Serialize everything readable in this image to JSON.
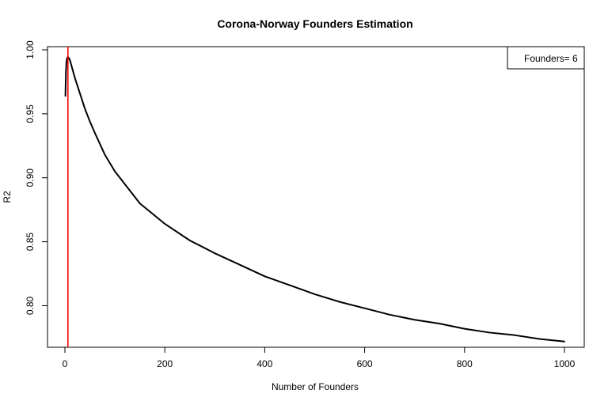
{
  "chart_data": {
    "type": "line",
    "title": "Corona-Norway  Founders Estimation",
    "xlabel": "Number of Founders",
    "ylabel": "R2",
    "xlim": [
      0,
      1000
    ],
    "ylim": [
      0.77,
      1.0
    ],
    "x_ticks": [
      0,
      200,
      400,
      600,
      800,
      1000
    ],
    "y_ticks": [
      0.8,
      0.85,
      0.9,
      0.95,
      1.0
    ],
    "x_tick_labels": [
      "0",
      "200",
      "400",
      "600",
      "800",
      "1000"
    ],
    "y_tick_labels": [
      "0.80",
      "0.85",
      "0.90",
      "0.95",
      "1.00"
    ],
    "grid": false,
    "legend": {
      "position": "top-right",
      "text": "Founders= 6"
    },
    "vline": {
      "x": 6,
      "color": "#ff0000"
    },
    "series": [
      {
        "color": "#000000",
        "x": [
          1,
          2,
          3,
          4,
          5,
          6,
          8,
          10,
          15,
          20,
          30,
          40,
          50,
          60,
          80,
          100,
          150,
          200,
          250,
          300,
          350,
          400,
          450,
          500,
          550,
          600,
          650,
          700,
          750,
          800,
          850,
          900,
          950,
          1000
        ],
        "y": [
          0.964,
          0.982,
          0.99,
          0.993,
          0.994,
          0.9945,
          0.9935,
          0.992,
          0.985,
          0.978,
          0.966,
          0.954,
          0.944,
          0.935,
          0.918,
          0.905,
          0.88,
          0.864,
          0.851,
          0.841,
          0.832,
          0.823,
          0.816,
          0.809,
          0.803,
          0.798,
          0.793,
          0.789,
          0.786,
          0.782,
          0.779,
          0.777,
          0.774,
          0.772
        ]
      }
    ]
  }
}
